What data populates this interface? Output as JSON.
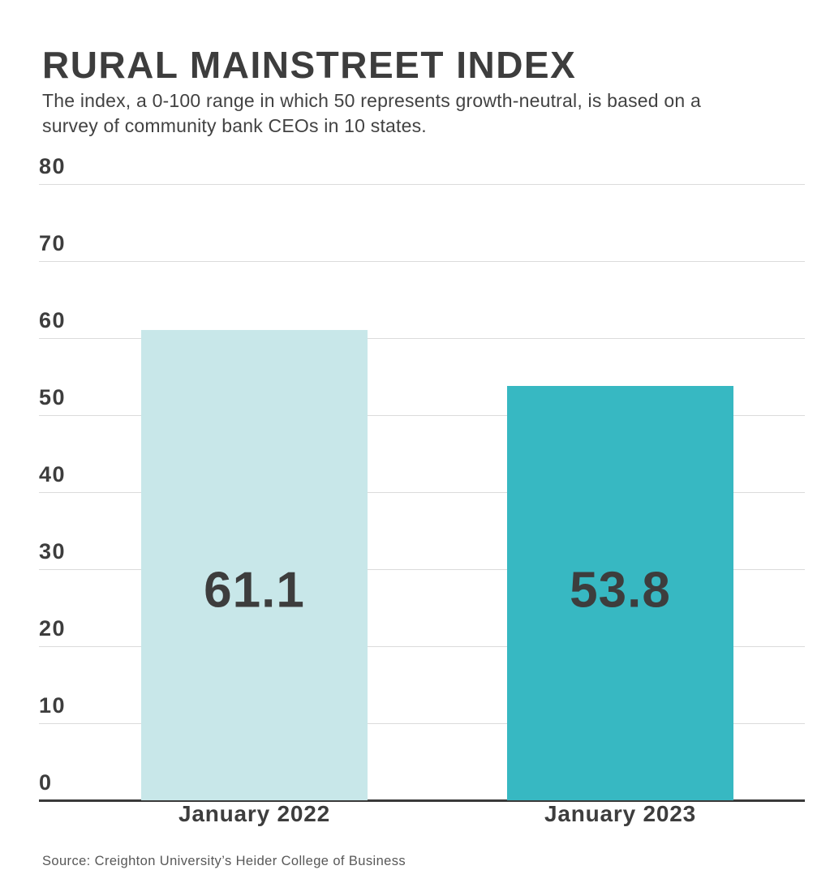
{
  "header": {
    "title": "RURAL MAINSTREET INDEX",
    "subtitle": "The index, a 0-100 range in which 50 represents growth-neutral, is based on a survey of community bank CEOs in 10 states."
  },
  "chart_data": {
    "type": "bar",
    "title": "RURAL MAINSTREET INDEX",
    "subtitle": "The index, a 0-100 range in which 50 represents growth-neutral, is based on a survey of community bank CEOs in 10 states.",
    "categories": [
      "January 2022",
      "January 2023"
    ],
    "values": [
      61.1,
      53.8
    ],
    "value_labels": [
      "61.1",
      "53.8"
    ],
    "bar_colors": [
      "#c8e7e9",
      "#37b8c2"
    ],
    "xlabel": "",
    "ylabel": "",
    "ylim": [
      0,
      80
    ],
    "yticks": [
      0,
      10,
      20,
      30,
      40,
      50,
      60,
      70,
      80
    ],
    "grid": "horizontal",
    "gridline_color": "#dbdbdb",
    "baseline_color": "#3a3a3a",
    "text_color": "#3d3d3d",
    "legend": "none"
  },
  "footer": {
    "source": "Source: Creighton University’s Heider College of Business"
  }
}
